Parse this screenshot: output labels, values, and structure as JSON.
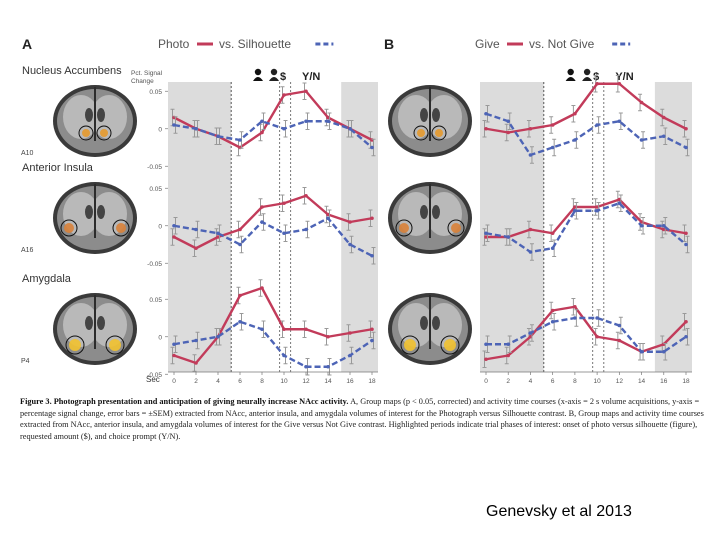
{
  "panels": [
    {
      "letter": "A",
      "legend": {
        "series1": "Photo",
        "series2": "vs. Silhouette"
      },
      "rows": [
        {
          "title": "Nucleus Accumbens",
          "tag": "A10",
          "ylabel_line1": "Pct. Signal",
          "ylabel_line2": "Change"
        },
        {
          "title": "Anterior Insula",
          "tag": "A16",
          "ylabel_line1": "",
          "ylabel_line2": ""
        },
        {
          "title": "Amygdala",
          "tag": "P4",
          "ylabel_line1": "",
          "ylabel_line2": ""
        }
      ]
    },
    {
      "letter": "B",
      "legend": {
        "series1": "Give",
        "series2": "vs. Not Give"
      },
      "rows": [
        {
          "title": "",
          "tag": ""
        },
        {
          "title": "",
          "tag": ""
        },
        {
          "title": "",
          "tag": ""
        }
      ]
    }
  ],
  "markers": {
    "dollar": "$",
    "choice": "Y/N"
  },
  "xaxis": {
    "label": "Sec",
    "ticks": [
      "0",
      "2",
      "4",
      "6",
      "8",
      "10",
      "12",
      "14",
      "16",
      "18"
    ]
  },
  "yticks": [
    "0.05",
    "0",
    "-0.05"
  ],
  "colors": {
    "series1": "#c23b5a",
    "series2": "#4d64b6",
    "shade": "#dcdcdc"
  },
  "caption": {
    "label": "Figure 3.",
    "title": "Photograph presentation and anticipation of giving neurally increase NAcc activity.",
    "text": "A, Group maps (p < 0.05, corrected) and activity time courses (x-axis = 2 s volume acquisitions, y-axis = percentage signal change, error bars = ±SEM) extracted from NAcc, anterior insula, and amygdala volumes of interest for the Photograph versus Silhouette contrast. B, Group maps and activity time courses extracted from NAcc, anterior insula, and amygdala volumes of interest for the Give versus Not Give contrast. Highlighted periods indicate trial phases of interest: onset of photo versus silhouette (figure), requested amount ($), and choice prompt (Y/N)."
  },
  "credit": "Genevsky et al 2013",
  "chart_data": [
    {
      "type": "line",
      "panel": "A",
      "region": "Nucleus Accumbens",
      "x": [
        0,
        2,
        4,
        6,
        8,
        10,
        12,
        14,
        16,
        18
      ],
      "series": [
        {
          "name": "Photo",
          "values": [
            0.015,
            0.0,
            -0.01,
            -0.025,
            -0.005,
            0.045,
            0.05,
            0.015,
            0.0,
            -0.015
          ]
        },
        {
          "name": "Silhouette",
          "values": [
            0.005,
            0.0,
            -0.01,
            -0.015,
            0.01,
            0.0,
            0.01,
            0.01,
            0.0,
            -0.025
          ]
        }
      ],
      "ylim": [
        -0.055,
        0.065
      ]
    },
    {
      "type": "line",
      "panel": "A",
      "region": "Anterior Insula",
      "x": [
        0,
        2,
        4,
        6,
        8,
        10,
        12,
        14,
        16,
        18
      ],
      "series": [
        {
          "name": "Photo",
          "values": [
            -0.015,
            -0.03,
            -0.015,
            -0.005,
            0.025,
            0.03,
            0.04,
            0.015,
            0.005,
            0.01
          ]
        },
        {
          "name": "Silhouette",
          "values": [
            0.0,
            -0.005,
            -0.01,
            -0.025,
            0.005,
            -0.01,
            -0.005,
            0.01,
            -0.025,
            -0.04
          ]
        }
      ],
      "ylim": [
        -0.055,
        0.065
      ]
    },
    {
      "type": "line",
      "panel": "A",
      "region": "Amygdala",
      "x": [
        0,
        2,
        4,
        6,
        8,
        10,
        12,
        14,
        16,
        18
      ],
      "series": [
        {
          "name": "Photo",
          "values": [
            -0.025,
            -0.035,
            0.0,
            0.055,
            0.065,
            0.01,
            0.01,
            0.0,
            0.005,
            0.01
          ]
        },
        {
          "name": "Silhouette",
          "values": [
            -0.01,
            -0.005,
            0.0,
            0.02,
            0.01,
            -0.025,
            -0.04,
            -0.04,
            -0.025,
            -0.005
          ]
        }
      ],
      "ylim": [
        -0.055,
        0.065
      ]
    },
    {
      "type": "line",
      "panel": "B",
      "region": "Nucleus Accumbens",
      "x": [
        0,
        2,
        4,
        6,
        8,
        10,
        12,
        14,
        16,
        18
      ],
      "series": [
        {
          "name": "Give",
          "values": [
            0.0,
            -0.005,
            0.0,
            0.005,
            0.02,
            0.06,
            0.06,
            0.035,
            0.015,
            0.0
          ]
        },
        {
          "name": "Not Give",
          "values": [
            0.02,
            0.01,
            -0.035,
            -0.025,
            -0.015,
            0.005,
            0.01,
            -0.015,
            -0.01,
            -0.025
          ]
        }
      ],
      "ylim": [
        -0.055,
        0.065
      ]
    },
    {
      "type": "line",
      "panel": "B",
      "region": "Anterior Insula",
      "x": [
        0,
        2,
        4,
        6,
        8,
        10,
        12,
        14,
        16,
        18
      ],
      "series": [
        {
          "name": "Give",
          "values": [
            -0.015,
            -0.015,
            -0.005,
            -0.01,
            0.025,
            0.025,
            0.035,
            0.005,
            -0.005,
            -0.01
          ]
        },
        {
          "name": "Not Give",
          "values": [
            -0.01,
            -0.015,
            -0.035,
            -0.03,
            0.02,
            0.02,
            0.03,
            0.0,
            0.0,
            -0.025
          ]
        }
      ],
      "ylim": [
        -0.055,
        0.065
      ]
    },
    {
      "type": "line",
      "panel": "B",
      "region": "Amygdala",
      "x": [
        0,
        2,
        4,
        6,
        8,
        10,
        12,
        14,
        16,
        18
      ],
      "series": [
        {
          "name": "Give",
          "values": [
            -0.03,
            -0.025,
            0.0,
            0.035,
            0.04,
            0.0,
            -0.005,
            -0.02,
            -0.01,
            0.02
          ]
        },
        {
          "name": "Not Give",
          "values": [
            -0.01,
            -0.01,
            0.005,
            0.02,
            0.025,
            0.025,
            0.015,
            -0.02,
            -0.02,
            0.0
          ]
        }
      ],
      "ylim": [
        -0.055,
        0.065
      ]
    }
  ]
}
